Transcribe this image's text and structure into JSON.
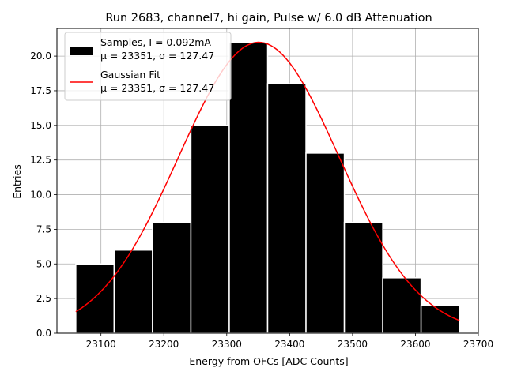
{
  "chart_data": {
    "type": "bar",
    "title": "Run 2683, channel7, hi gain, Pulse w/ 6.0 dB Attenuation",
    "xlabel": "Energy from OFCs [ADC Counts]",
    "ylabel": "Entries",
    "xlim": [
      23030,
      23700
    ],
    "ylim": [
      0,
      22
    ],
    "grid": true,
    "x_ticks": [
      23100,
      23200,
      23300,
      23400,
      23500,
      23600,
      23700
    ],
    "y_ticks": [
      0.0,
      2.5,
      5.0,
      7.5,
      10.0,
      12.5,
      15.0,
      17.5,
      20.0
    ],
    "histogram": {
      "name": "Samples, I = 0.092mA",
      "stats_label": "μ = 23351, σ = 127.47",
      "color": "#000000",
      "edge_color": "#ffffff",
      "bin_edges": [
        23060,
        23121,
        23182,
        23243,
        23304,
        23365,
        23426,
        23487,
        23548,
        23609,
        23670
      ],
      "counts": [
        5,
        6,
        8,
        15,
        21,
        18,
        13,
        8,
        4,
        2
      ]
    },
    "fit": {
      "name": "Gaussian Fit",
      "stats_label": "μ = 23351, σ = 127.47",
      "color": "#ff0000",
      "mu": 23351,
      "sigma": 127.47,
      "amplitude": 21,
      "x_range": [
        23060,
        23670
      ]
    },
    "legend_location": "upper left"
  }
}
